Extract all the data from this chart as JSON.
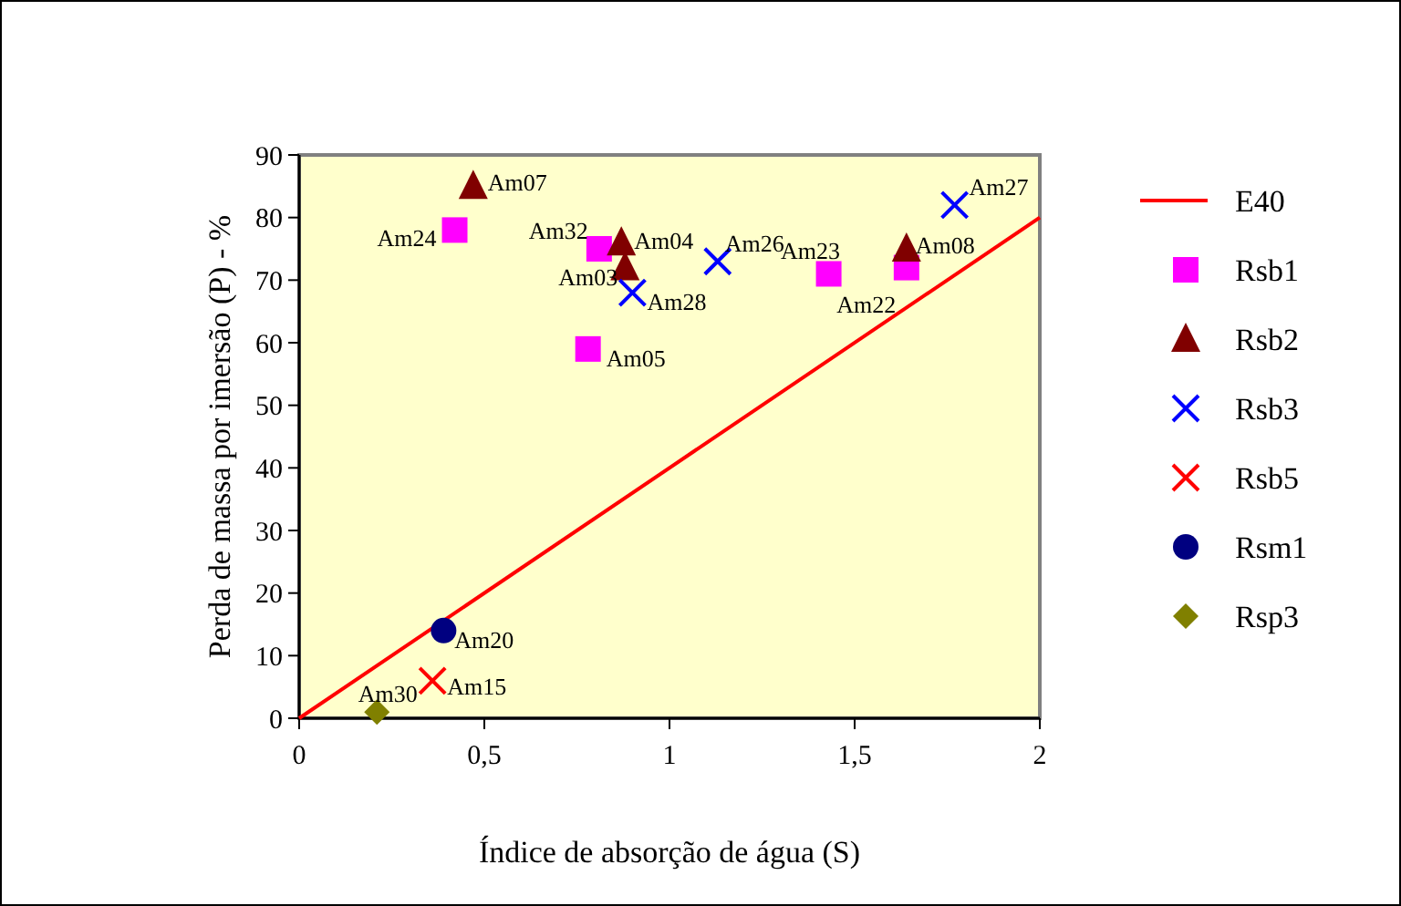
{
  "chart_data": {
    "type": "scatter",
    "xlabel": "Índice de absorção de água (S)",
    "ylabel": "Perda de massa por imersão (P) - %",
    "xlim": [
      0,
      2
    ],
    "xticks": [
      0,
      {
        "value": 0.5,
        "label": "0,5"
      },
      1,
      {
        "value": 1.5,
        "label": "1,5"
      },
      2
    ],
    "ylim": [
      0,
      90
    ],
    "yticks": [
      0,
      10,
      20,
      30,
      40,
      50,
      60,
      70,
      80,
      90
    ],
    "grid": false,
    "legend": "right",
    "series": [
      {
        "name": "E40",
        "type": "line",
        "color": "#ff0000",
        "x": [
          0,
          2
        ],
        "values": [
          0,
          80
        ]
      },
      {
        "name": "Rsb1",
        "color": "#ff00ff",
        "marker": "square",
        "x": [
          0.42,
          0.81,
          0.78,
          1.43,
          1.64
        ],
        "values": [
          78,
          75,
          59,
          71,
          72
        ]
      },
      {
        "name": "Rsb2",
        "color": "#800000",
        "marker": "triangle",
        "x": [
          0.47,
          0.87,
          0.88,
          1.64
        ],
        "values": [
          85,
          76,
          72,
          75
        ]
      },
      {
        "name": "Rsb3",
        "color": "#0000ff",
        "marker": "cross",
        "x": [
          0.9,
          1.13,
          1.77
        ],
        "values": [
          68,
          73,
          82
        ]
      },
      {
        "name": "Rsb5",
        "color": "#ff0000",
        "marker": "cross",
        "x": [
          0.36
        ],
        "values": [
          6
        ]
      },
      {
        "name": "Rsm1",
        "color": "#000080",
        "marker": "circle",
        "x": [
          0.39
        ],
        "values": [
          14
        ]
      },
      {
        "name": "Rsp3",
        "color": "#808000",
        "marker": "diamond",
        "x": [
          0.21
        ],
        "values": [
          1
        ]
      }
    ],
    "annotations": [
      {
        "text": "Am07",
        "x": 0.47,
        "y": 85
      },
      {
        "text": "Am24",
        "x": 0.42,
        "y": 78
      },
      {
        "text": "Am32",
        "x": 0.81,
        "y": 75
      },
      {
        "text": "Am04",
        "x": 0.87,
        "y": 76
      },
      {
        "text": "Am03",
        "x": 0.88,
        "y": 72
      },
      {
        "text": "Am28",
        "x": 0.9,
        "y": 68
      },
      {
        "text": "Am05",
        "x": 0.78,
        "y": 59
      },
      {
        "text": "Am26",
        "x": 1.13,
        "y": 73
      },
      {
        "text": "Am23",
        "x": 1.43,
        "y": 71
      },
      {
        "text": "Am08",
        "x": 1.64,
        "y": 75
      },
      {
        "text": "Am22",
        "x": 1.64,
        "y": 72
      },
      {
        "text": "Am27",
        "x": 1.77,
        "y": 82
      },
      {
        "text": "Am20",
        "x": 0.39,
        "y": 14
      },
      {
        "text": "Am15",
        "x": 0.36,
        "y": 6
      },
      {
        "text": "Am30",
        "x": 0.21,
        "y": 1
      }
    ]
  }
}
